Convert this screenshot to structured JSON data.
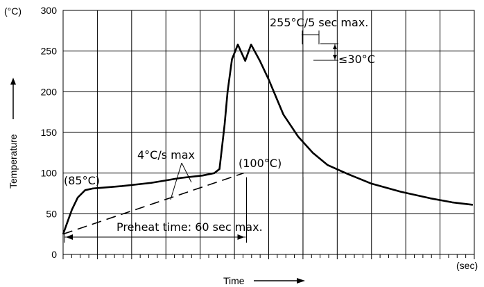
{
  "chart_data": {
    "type": "line",
    "title": "",
    "xlabel": "Time",
    "ylabel": "Temperature",
    "y_unit_label": "(°C)",
    "x_unit_label": "(sec)",
    "ylim": [
      0,
      300
    ],
    "yticks": [
      0,
      50,
      100,
      150,
      200,
      250,
      300
    ],
    "ytick_labels": [
      "0",
      "50",
      "100",
      "150",
      "200",
      "250",
      "300"
    ],
    "x_tick_labels_shown": false,
    "grid": true,
    "series": [
      {
        "values_desc": "reflow temperature profile (time axis unlabeled, positions in major grid divisions 0–12)",
        "x": [
          0,
          0.3,
          0.6,
          1,
          1.5,
          2,
          4,
          6,
          7,
          8,
          9.5,
          10.3,
          10.65,
          11,
          11.2,
          11.5,
          11.9,
          12.4,
          12.8,
          13.4,
          14,
          15,
          16,
          17,
          18,
          19.5,
          21,
          23,
          25,
          26.5,
          27.9
        ],
        "y": [
          25,
          40,
          55,
          70,
          79,
          81,
          84,
          88,
          91,
          94,
          97,
          100,
          105,
          160,
          200,
          240,
          258,
          238,
          258,
          238,
          215,
          172,
          145,
          125,
          110,
          98,
          87,
          77,
          69,
          64,
          61
        ]
      },
      {
        "name": "",
        "values_desc": "dashed preheat guide line",
        "x": [
          0,
          12.3
        ],
        "y": [
          25,
          100
        ]
      }
    ],
    "annotations": {
      "peak": "255°C/5 sec max.",
      "delta": "≤30°C",
      "ramp": "4°C/s max",
      "start_temp": "(85°C)",
      "end_preheat": "(100°C)",
      "preheat": "Preheat time: 60 sec max."
    }
  }
}
